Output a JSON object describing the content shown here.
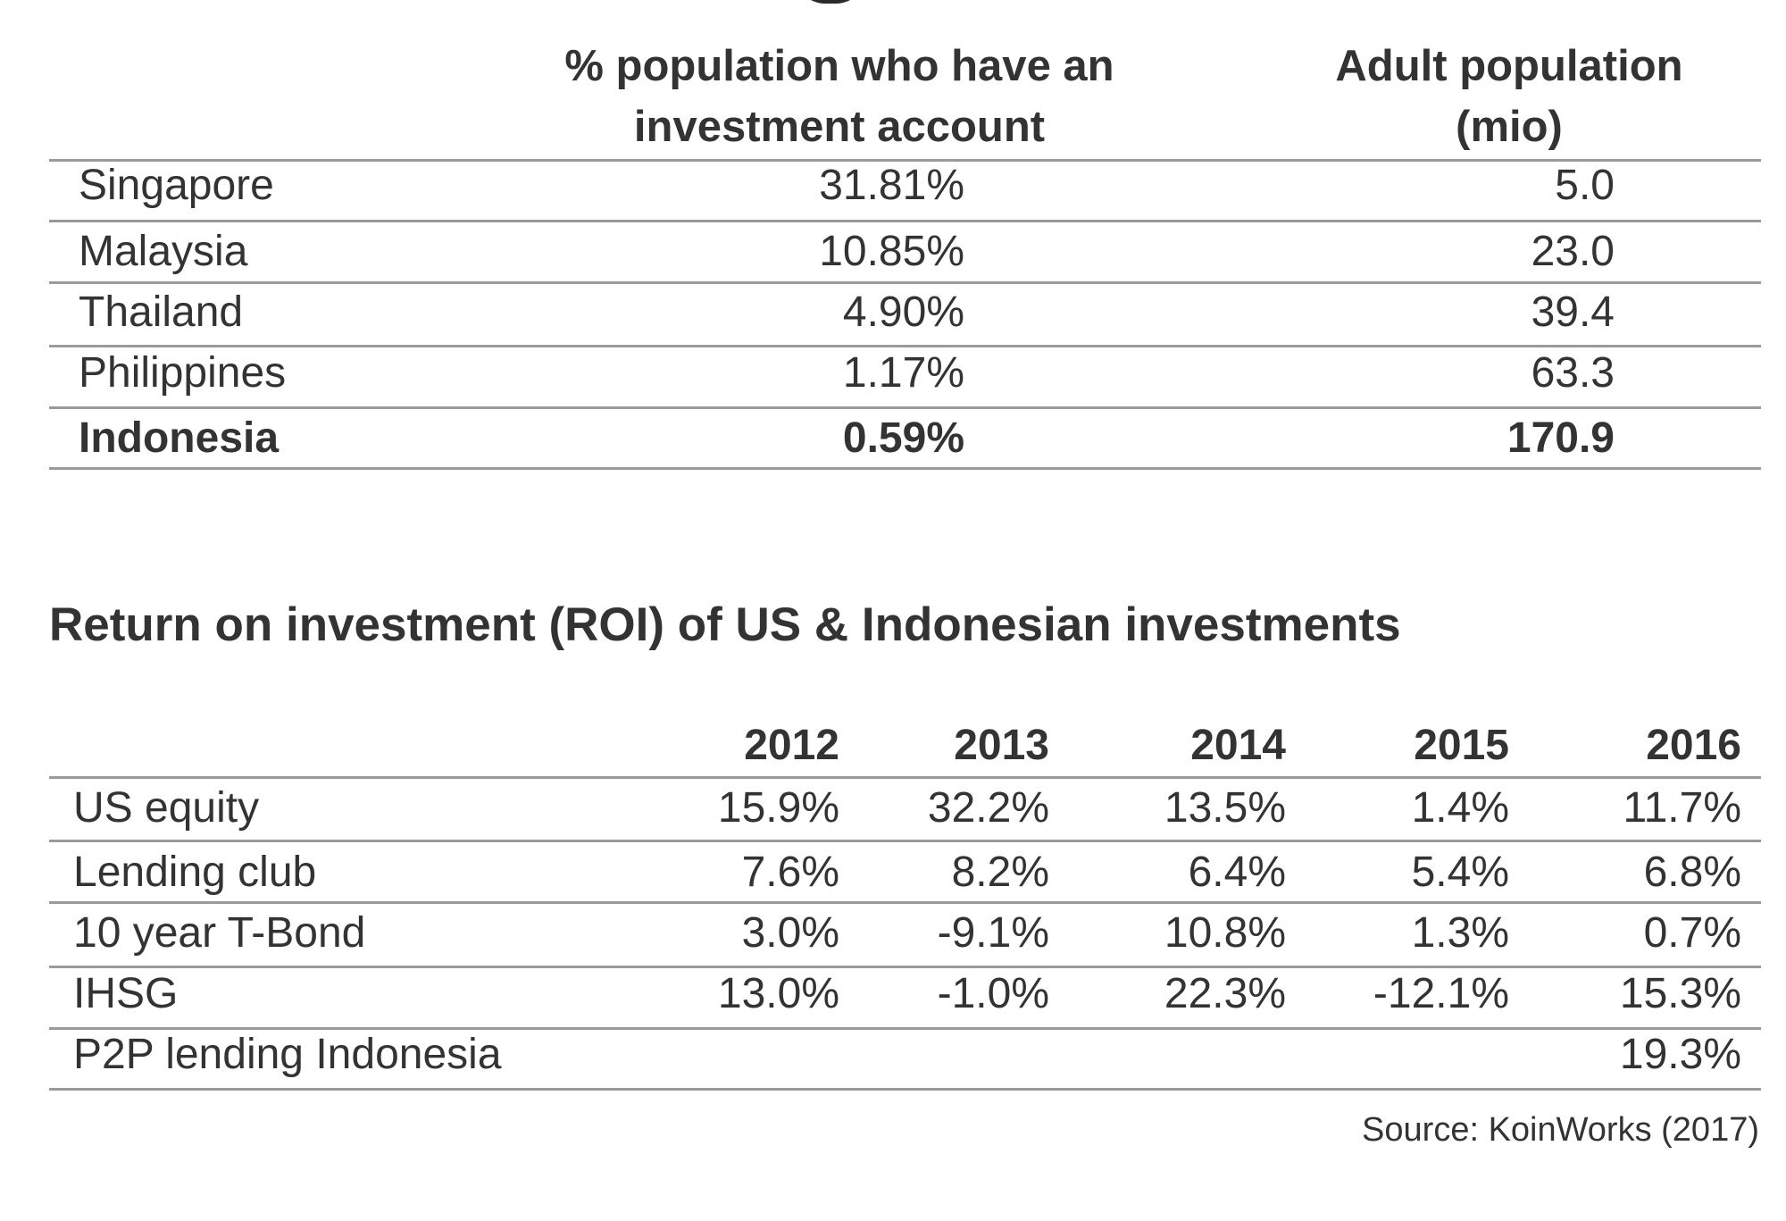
{
  "table1": {
    "headers": [
      "% population who have an investment account",
      "Adult population (mio)"
    ],
    "rows": [
      {
        "country": "Singapore",
        "pct": "31.81%",
        "pop": "5.0"
      },
      {
        "country": "Malaysia",
        "pct": "10.85%",
        "pop": "23.0"
      },
      {
        "country": "Thailand",
        "pct": "4.90%",
        "pop": "39.4"
      },
      {
        "country": "Philippines",
        "pct": "1.17%",
        "pop": "63.3"
      },
      {
        "country": "Indonesia",
        "pct": "0.59%",
        "pop": "170.9"
      }
    ]
  },
  "table2": {
    "title": "Return on investment (ROI) of US & Indonesian investments",
    "years": [
      "2012",
      "2013",
      "2014",
      "2015",
      "2016"
    ],
    "rows": [
      {
        "label": "US equity",
        "values": [
          "15.9%",
          "32.2%",
          "13.5%",
          "1.4%",
          "11.7%"
        ]
      },
      {
        "label": "Lending club",
        "values": [
          "7.6%",
          "8.2%",
          "6.4%",
          "5.4%",
          "6.8%"
        ]
      },
      {
        "label": "10 year T-Bond",
        "values": [
          "3.0%",
          "-9.1%",
          "10.8%",
          "1.3%",
          "0.7%"
        ]
      },
      {
        "label": "IHSG",
        "values": [
          "13.0%",
          "-1.0%",
          "22.3%",
          "-12.1%",
          "15.3%"
        ]
      },
      {
        "label": "P2P lending Indonesia",
        "values": [
          "",
          "",
          "",
          "",
          "19.3%"
        ]
      }
    ]
  },
  "source": "Source: KoinWorks (2017)"
}
